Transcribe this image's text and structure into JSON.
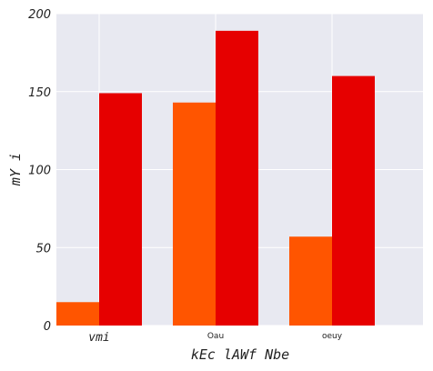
{
  "chart_data": {
    "type": "bar",
    "categories": [
      "vmi",
      "Oau",
      "oeuy"
    ],
    "series": [
      {
        "values": [
          15,
          143,
          57
        ],
        "color": "#ff5500"
      },
      {
        "values": [
          149,
          189,
          160
        ],
        "color": "#e60000"
      }
    ],
    "xlabel": "kEc lAWf Nbe",
    "ylabel": "mY i",
    "ylim": [
      0,
      200
    ],
    "yticks": [
      0,
      50,
      100,
      150,
      200
    ],
    "grid": true,
    "plot_background": "#e8e9f1",
    "grid_color": "#ffffff"
  }
}
